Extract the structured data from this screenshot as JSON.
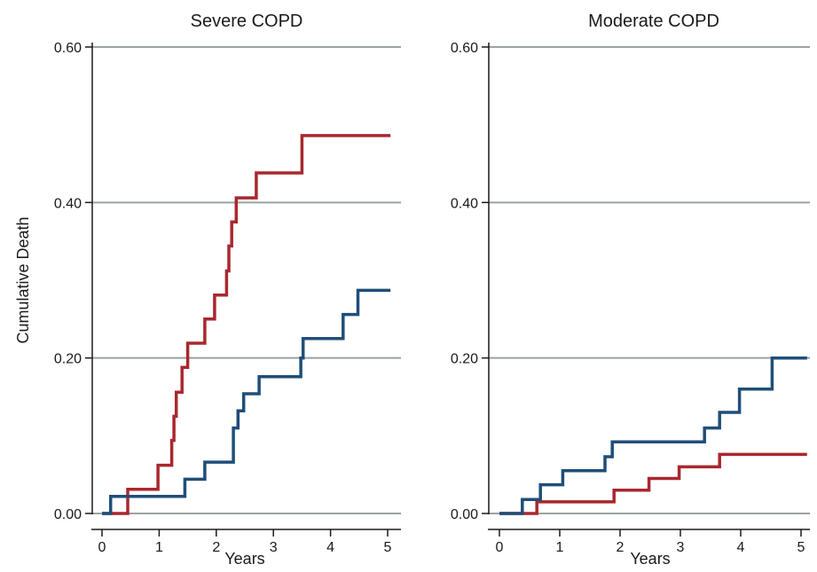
{
  "chart_data": [
    {
      "type": "line",
      "step": true,
      "title": "Severe COPD",
      "xlabel": "Years",
      "ylabel": "Cumulative Death",
      "xlim": [
        -0.2,
        5.2
      ],
      "ylim": [
        0,
        0.6
      ],
      "xticks": [
        0,
        1,
        2,
        3,
        4,
        5
      ],
      "xtick_labels": [
        "0",
        "1",
        "2",
        "3",
        "4",
        "5"
      ],
      "yticks": [
        0,
        0.2,
        0.4,
        0.6
      ],
      "ytick_labels": [
        "0.00",
        "0.20",
        "0.40",
        "0.60"
      ],
      "grid": true,
      "series": [
        {
          "color": "#a8282e",
          "x": [
            0,
            0.45,
            0.45,
            0.98,
            0.98,
            1.22,
            1.22,
            1.26,
            1.26,
            1.3,
            1.3,
            1.4,
            1.4,
            1.5,
            1.5,
            1.8,
            1.8,
            1.97,
            1.97,
            2.18,
            2.18,
            2.22,
            2.22,
            2.27,
            2.27,
            2.35,
            2.35,
            2.7,
            2.7,
            3.5,
            3.5,
            3.85,
            3.85,
            5.05
          ],
          "y": [
            0,
            0,
            0.031,
            0.031,
            0.062,
            0.062,
            0.094,
            0.094,
            0.125,
            0.125,
            0.156,
            0.156,
            0.188,
            0.188,
            0.219,
            0.219,
            0.25,
            0.25,
            0.281,
            0.281,
            0.312,
            0.312,
            0.344,
            0.344,
            0.375,
            0.375,
            0.406,
            0.406,
            0.438,
            0.438,
            0.486,
            0.486,
            0.486,
            0.486
          ]
        },
        {
          "color": "#1f4e79",
          "x": [
            0,
            0.15,
            0.15,
            1.45,
            1.45,
            1.8,
            1.8,
            2.3,
            2.3,
            2.38,
            2.38,
            2.48,
            2.48,
            2.75,
            2.75,
            3.48,
            3.48,
            3.52,
            3.52,
            4.22,
            4.22,
            4.48,
            4.48,
            5.05
          ],
          "y": [
            0,
            0,
            0.022,
            0.022,
            0.044,
            0.044,
            0.066,
            0.066,
            0.11,
            0.11,
            0.132,
            0.132,
            0.154,
            0.154,
            0.176,
            0.176,
            0.2,
            0.2,
            0.225,
            0.225,
            0.256,
            0.256,
            0.287,
            0.287
          ]
        }
      ]
    },
    {
      "type": "line",
      "step": true,
      "title": "Moderate COPD",
      "xlabel": "Years",
      "ylabel": "",
      "xlim": [
        -0.2,
        5.2
      ],
      "ylim": [
        0,
        0.6
      ],
      "xticks": [
        0,
        1,
        2,
        3,
        4,
        5
      ],
      "xtick_labels": [
        "0",
        "1",
        "2",
        "3",
        "4",
        "5"
      ],
      "yticks": [
        0,
        0.2,
        0.4,
        0.6
      ],
      "ytick_labels": [
        "0.00",
        "0.20",
        "0.40",
        "0.60"
      ],
      "grid": true,
      "series": [
        {
          "color": "#a8282e",
          "x": [
            0,
            0.62,
            0.62,
            1.9,
            1.9,
            2.48,
            2.48,
            2.98,
            2.98,
            3.65,
            3.65,
            5.1
          ],
          "y": [
            0,
            0,
            0.015,
            0.015,
            0.03,
            0.03,
            0.045,
            0.045,
            0.06,
            0.06,
            0.076,
            0.076
          ]
        },
        {
          "color": "#1f4e79",
          "x": [
            0,
            0.38,
            0.38,
            0.68,
            0.68,
            1.05,
            1.05,
            1.75,
            1.75,
            1.87,
            1.87,
            3.4,
            3.4,
            3.65,
            3.65,
            3.98,
            3.98,
            4.52,
            4.52,
            5.1
          ],
          "y": [
            0,
            0,
            0.018,
            0.018,
            0.037,
            0.037,
            0.055,
            0.055,
            0.073,
            0.073,
            0.092,
            0.092,
            0.11,
            0.11,
            0.13,
            0.13,
            0.16,
            0.16,
            0.2,
            0.2
          ]
        }
      ]
    }
  ]
}
